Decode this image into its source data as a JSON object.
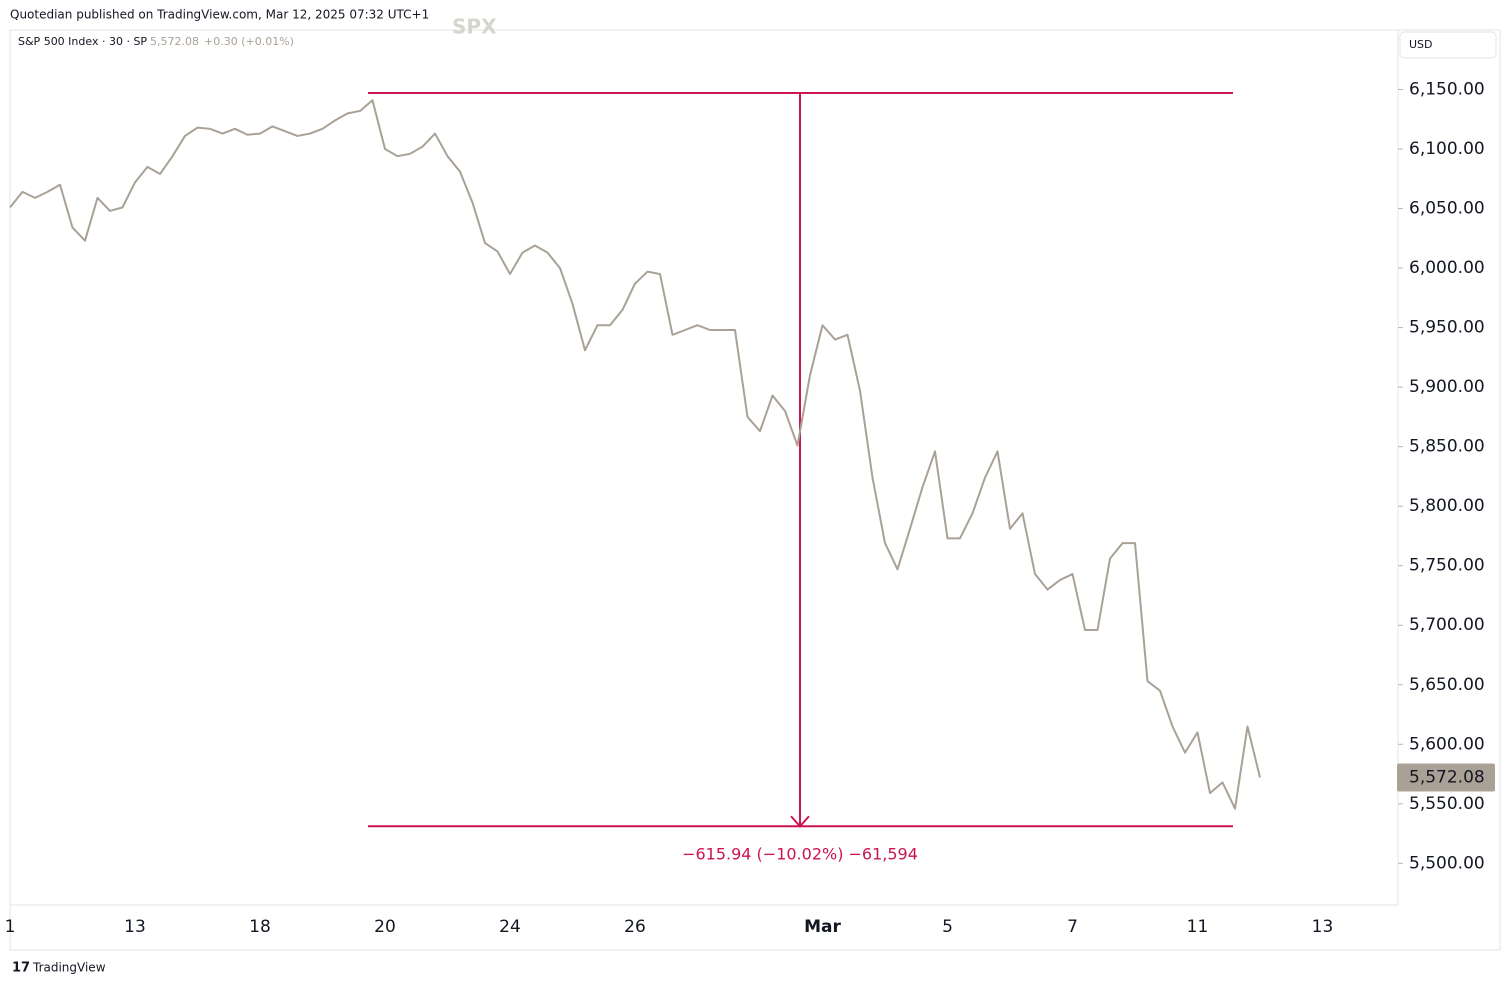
{
  "chart_data": {
    "type": "line",
    "publisher": "Quotedian published on TradingView.com, Mar 12, 2025 07:32 UTC+1",
    "symbol": "S&P 500 Index · 30 · SP",
    "header_price": "5,572.08",
    "header_change": "+0.30 (+0.01%)",
    "watermark": "SPX",
    "currency": "USD",
    "brand": "TradingView",
    "categories": [
      "1",
      null,
      null,
      null,
      null,
      null,
      null,
      null,
      null,
      null,
      "13",
      null,
      null,
      null,
      null,
      null,
      null,
      null,
      null,
      null,
      "18",
      null,
      null,
      null,
      null,
      null,
      null,
      null,
      null,
      null,
      "20",
      null,
      null,
      null,
      null,
      null,
      null,
      null,
      null,
      null,
      "24",
      null,
      null,
      null,
      null,
      null,
      null,
      null,
      null,
      null,
      "26",
      null,
      null,
      null,
      null,
      null,
      null,
      null,
      null,
      null,
      null,
      null,
      null,
      null,
      null,
      "Mar",
      null,
      null,
      null,
      null,
      null,
      null,
      null,
      null,
      null,
      "5",
      null,
      null,
      null,
      null,
      null,
      null,
      null,
      null,
      null,
      "7",
      null,
      null,
      null,
      null,
      null,
      null,
      null,
      null,
      null,
      "11",
      null,
      null,
      null,
      null,
      null,
      null,
      null,
      null,
      null,
      "13"
    ],
    "series": [
      {
        "name": "S&P 500 Index",
        "color": "#aaa196",
        "values": [
          6051,
          6064,
          6059,
          6064,
          6070,
          6034,
          6023,
          6059,
          6048,
          6051,
          6072,
          6085,
          6079,
          6094,
          6111,
          6118,
          6117,
          6113,
          6117,
          6112,
          6113,
          6119,
          6115,
          6111,
          6113,
          6117,
          6124,
          6130,
          6132,
          6141,
          6100,
          6094,
          6096,
          6102,
          6113,
          6094,
          6081,
          6055,
          6021,
          6014,
          5995,
          6013,
          6019,
          6013,
          6000,
          5970,
          5931,
          5952,
          5952,
          5965,
          5987,
          5997,
          5995,
          5944,
          5948,
          5952,
          5948,
          5948,
          5948,
          5875,
          5863,
          5893,
          5880,
          5851,
          5910,
          5952,
          5940,
          5944,
          5897,
          5824,
          5769,
          5747,
          5781,
          5816,
          5846,
          5773,
          5773,
          5794,
          5824,
          5846,
          5781,
          5794,
          5743,
          5730,
          5738,
          5743,
          5696,
          5696,
          5756,
          5769,
          5769,
          5653,
          5645,
          5615,
          5593,
          5610,
          5559,
          5568,
          5546,
          5615,
          5572.08,
          null,
          null,
          null,
          null,
          null
        ]
      }
    ],
    "last_price": 5572.08,
    "last_price_label": "5,572.08",
    "measure": {
      "from": 6147.1,
      "to": 5531.16,
      "color": "#cc1450",
      "label": "−615.94 (−10.02%) −61,594"
    },
    "ylim": [
      5465,
      6200
    ],
    "yticks": [
      {
        "value": 5500,
        "label": "5,500.00"
      },
      {
        "value": 5550,
        "label": "5,550.00"
      },
      {
        "value": 5600,
        "label": "5,600.00"
      },
      {
        "value": 5650,
        "label": "5,650.00"
      },
      {
        "value": 5700,
        "label": "5,700.00"
      },
      {
        "value": 5750,
        "label": "5,750.00"
      },
      {
        "value": 5800,
        "label": "5,800.00"
      },
      {
        "value": 5850,
        "label": "5,850.00"
      },
      {
        "value": 5900,
        "label": "5,900.00"
      },
      {
        "value": 5950,
        "label": "5,950.00"
      },
      {
        "value": 6000,
        "label": "6,000.00"
      },
      {
        "value": 6050,
        "label": "6,050.00"
      },
      {
        "value": 6100,
        "label": "6,100.00"
      },
      {
        "value": 6150,
        "label": "6,150.00"
      }
    ],
    "grid": false
  }
}
